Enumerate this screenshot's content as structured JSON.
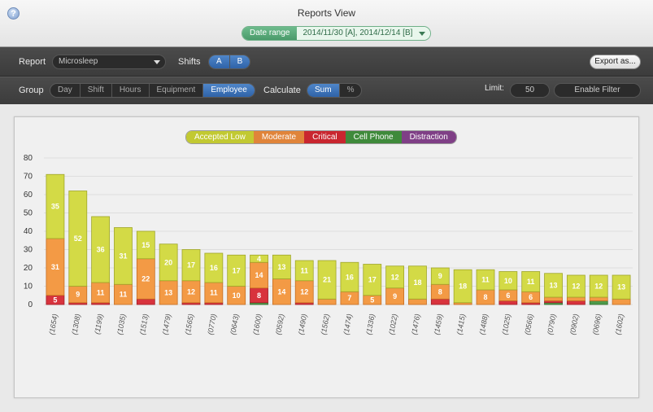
{
  "window": {
    "title": "Reports View",
    "help_icon": "?",
    "date_range_label": "Date range",
    "date_range_value": "2014/11/30 [A], 2014/12/14 [B]"
  },
  "toolbar": {
    "report_label": "Report",
    "report_value": "Microsleep",
    "shifts_label": "Shifts",
    "shifts": [
      "A",
      "B"
    ],
    "export_label": "Export as...",
    "group_label": "Group",
    "groups": [
      "Day",
      "Shift",
      "Hours",
      "Equipment",
      "Employee"
    ],
    "group_selected": "Employee",
    "calculate_label": "Calculate",
    "calculate_options": [
      "Sum",
      "%"
    ],
    "calculate_selected": "Sum",
    "limit_label": "Limit:",
    "limit_value": "50",
    "filter_label": "Enable Filter"
  },
  "colors": {
    "accepted_low": "#cbd43a",
    "moderate": "#f0923a",
    "critical": "#d8333d",
    "cell_phone": "#4e9a4a",
    "distraction": "#8e4f92"
  },
  "chart_data": {
    "type": "bar",
    "stacked": true,
    "ylim": [
      0,
      80
    ],
    "yticks": [
      0,
      10,
      20,
      30,
      40,
      50,
      60,
      70,
      80
    ],
    "grid": true,
    "legend_placement": "top-center",
    "categories": [
      "(1654)",
      "(1308)",
      "(1199)",
      "(1035)",
      "(1513)",
      "(1479)",
      "(1565)",
      "(0770)",
      "(0643)",
      "(1600)",
      "(0592)",
      "(1490)",
      "(1562)",
      "(1474)",
      "(1336)",
      "(1022)",
      "(1476)",
      "(1459)",
      "(1415)",
      "(1488)",
      "(1025)",
      "(0566)",
      "(0790)",
      "(0902)",
      "(0696)",
      "(1602)"
    ],
    "series": [
      {
        "name": "Accepted Low",
        "color": "#cbd43a",
        "values": [
          35,
          52,
          36,
          31,
          15,
          20,
          17,
          16,
          17,
          4,
          13,
          11,
          21,
          16,
          17,
          12,
          18,
          9,
          18,
          11,
          10,
          11,
          13,
          12,
          12,
          13
        ],
        "labels": [
          "35",
          "52",
          "36",
          "31",
          "15",
          "20",
          "17",
          "16",
          "17",
          "4",
          "13",
          "11",
          "21",
          "16",
          "17",
          "12",
          "18",
          "9",
          "18",
          "11",
          "10",
          "11",
          "13",
          "12",
          "12",
          "13"
        ]
      },
      {
        "name": "Moderate",
        "color": "#f0923a",
        "values": [
          31,
          9,
          11,
          11,
          22,
          13,
          12,
          11,
          10,
          14,
          14,
          12,
          3,
          7,
          5,
          9,
          3,
          8,
          1,
          8,
          6,
          6,
          2,
          2,
          2,
          3
        ],
        "labels": [
          "31",
          "9",
          "11",
          "11",
          "22",
          "13",
          "12",
          "11",
          "10",
          "14",
          "14",
          "12",
          "",
          "7",
          "5",
          "9",
          "",
          "8",
          "",
          "8",
          "6",
          "6",
          "",
          "",
          "",
          ""
        ]
      },
      {
        "name": "Critical",
        "color": "#d8333d",
        "values": [
          5,
          1,
          1,
          0,
          3,
          0,
          1,
          1,
          0,
          8,
          0,
          1,
          0,
          0,
          0,
          0,
          0,
          3,
          0,
          0,
          2,
          1,
          1,
          2,
          0,
          0
        ],
        "labels": [
          "5",
          "",
          "",
          "",
          "",
          "",
          "",
          "",
          "",
          "8",
          "",
          "",
          "",
          "",
          "",
          "",
          "",
          "",
          "",
          "",
          "",
          "",
          "",
          "",
          "",
          ""
        ]
      },
      {
        "name": "Cell Phone",
        "color": "#4e9a4a",
        "values": [
          0,
          0,
          0,
          0,
          0,
          0,
          0,
          0,
          0,
          1,
          0,
          0,
          0,
          0,
          0,
          0,
          0,
          0,
          0,
          0,
          0,
          0,
          1,
          0,
          2,
          0
        ],
        "labels": [
          "",
          "",
          "",
          "",
          "",
          "",
          "",
          "",
          "",
          "",
          "",
          "",
          "",
          "",
          "",
          "",
          "",
          "",
          "",
          "",
          "",
          "",
          "",
          "",
          "",
          ""
        ]
      },
      {
        "name": "Distraction",
        "color": "#8e4f92",
        "values": [
          0,
          0,
          0,
          0,
          0,
          0,
          0,
          0,
          0,
          0,
          0,
          0,
          0,
          0,
          0,
          0,
          0,
          0,
          0,
          0,
          0,
          0,
          0,
          0,
          0,
          0
        ],
        "labels": [
          "",
          "",
          "",
          "",
          "",
          "",
          "",
          "",
          "",
          "",
          "",
          "",
          "",
          "",
          "",
          "",
          "",
          "",
          "",
          "",
          "",
          "",
          "",
          "",
          "",
          ""
        ]
      }
    ]
  }
}
